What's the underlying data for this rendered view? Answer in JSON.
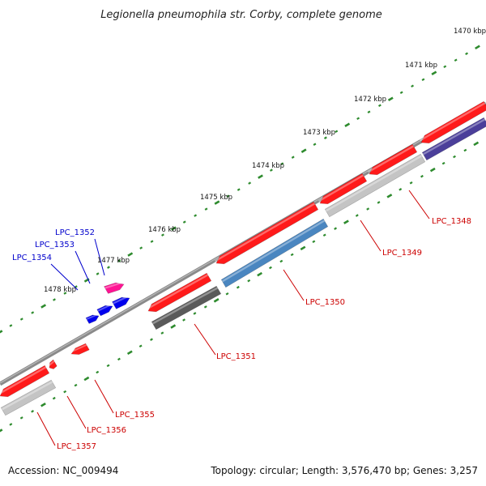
{
  "title": "Legionella pneumophila str. Corby, complete genome",
  "footer": {
    "accession": "Accession: NC_009494",
    "topology": "Topology: circular; Length: 3,576,470 bp; Genes: 3,257"
  },
  "colors": {
    "backbone": "#8a8a8a",
    "tick_marks": "#2e8b2e",
    "forward_label": "#0000cc",
    "reverse_label": "#cc0000",
    "cds": "#ff1a1a",
    "trna": "#0000ee",
    "ncrna": "#ff1493",
    "gray_feature": "#c4c4c4",
    "dark_feature": "#5a5a5a",
    "steel_feature": "#4a86c0",
    "navy_feature": "#4b3f9a"
  },
  "ticks": [
    "1470 kbp",
    "1471 kbp",
    "1472 kbp",
    "1473 kbp",
    "1474 kbp",
    "1475 kbp",
    "1476 kbp",
    "1477 kbp",
    "1478 kbp"
  ],
  "genes": [
    {
      "id": "LPC_1348",
      "strand": "reverse"
    },
    {
      "id": "LPC_1349",
      "strand": "reverse"
    },
    {
      "id": "LPC_1350",
      "strand": "reverse"
    },
    {
      "id": "LPC_1351",
      "strand": "reverse"
    },
    {
      "id": "LPC_1352",
      "strand": "forward"
    },
    {
      "id": "LPC_1353",
      "strand": "forward"
    },
    {
      "id": "LPC_1354",
      "strand": "forward"
    },
    {
      "id": "LPC_1355",
      "strand": "reverse"
    },
    {
      "id": "LPC_1356",
      "strand": "reverse"
    },
    {
      "id": "LPC_1357",
      "strand": "reverse"
    }
  ]
}
